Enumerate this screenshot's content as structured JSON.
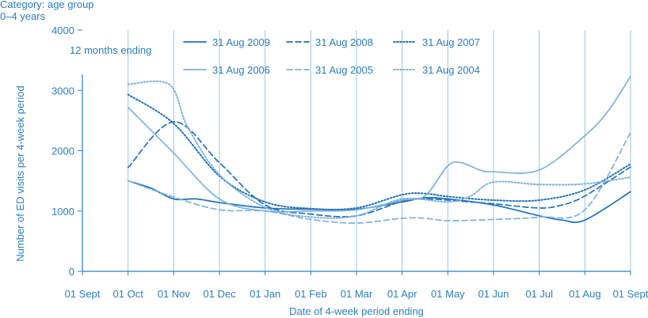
{
  "header": {
    "category_line": "Category: age group",
    "group_line": "0–4 years"
  },
  "chart_data": {
    "type": "line",
    "legend_title": "12 months ending",
    "xlabel": "Date of 4-week period ending",
    "ylabel": "Number of ED visits per 4-week period",
    "categories": [
      "01 Sept",
      "01 Oct",
      "01 Nov",
      "01 Dec",
      "01 Jan",
      "01 Feb",
      "01 Mar",
      "01 Apr",
      "01 May",
      "01 Jun",
      "01 Jul",
      "01 Aug",
      "01 Sept"
    ],
    "yticks": [
      0,
      1000,
      2000,
      3000,
      4000
    ],
    "ylim": [
      0,
      4000
    ],
    "grid": "vertical",
    "legend_position": "top-inside",
    "colors": {
      "dark": "#1f72b8",
      "light": "#7fb1da",
      "axis": "#2a7fc0"
    },
    "series": [
      {
        "name": "31 Aug 2009",
        "style": "solid",
        "color": "dark",
        "x": [
          1,
          1.5,
          2,
          2.5,
          3,
          4,
          5,
          6,
          7,
          7.5,
          8,
          9,
          10,
          10.5,
          11,
          12
        ],
        "y": [
          1500,
          1380,
          1200,
          1200,
          1140,
          1050,
          1030,
          1030,
          1150,
          1220,
          1200,
          1100,
          920,
          850,
          850,
          1320
        ]
      },
      {
        "name": "31 Aug 2008",
        "style": "dashed",
        "color": "dark",
        "x": [
          1,
          2,
          3,
          4,
          5,
          6,
          7,
          7.5,
          8,
          9,
          10,
          10.5,
          11,
          12
        ],
        "y": [
          1720,
          2480,
          1800,
          1100,
          950,
          920,
          1160,
          1200,
          1180,
          1120,
          1050,
          1100,
          1250,
          1730
        ]
      },
      {
        "name": "31 Aug 2007",
        "style": "dotted",
        "color": "dark",
        "x": [
          1,
          2,
          3,
          4,
          5,
          6,
          7,
          7.5,
          8,
          9,
          10,
          11,
          12
        ],
        "y": [
          2930,
          2450,
          1580,
          1150,
          1040,
          1050,
          1270,
          1290,
          1240,
          1180,
          1180,
          1350,
          1780
        ]
      },
      {
        "name": "31 Aug 2006",
        "style": "solid",
        "color": "light",
        "x": [
          1,
          2,
          3,
          4,
          5,
          6,
          7,
          7.5,
          8,
          8.3,
          8.7,
          9,
          10,
          11,
          11.5,
          12
        ],
        "y": [
          2720,
          1960,
          1200,
          1000,
          1000,
          1020,
          1180,
          1250,
          1750,
          1800,
          1680,
          1650,
          1680,
          2250,
          2650,
          3230
        ]
      },
      {
        "name": "31 Aug 2005",
        "style": "dashed",
        "color": "light",
        "x": [
          1,
          2,
          3,
          4,
          5,
          6,
          7,
          7.5,
          8,
          9,
          10,
          11,
          12
        ],
        "y": [
          1500,
          1230,
          1020,
          1000,
          860,
          800,
          880,
          880,
          840,
          860,
          900,
          1020,
          2300
        ]
      },
      {
        "name": "31 Aug 2004",
        "style": "dotted",
        "color": "light",
        "x": [
          1,
          1.9,
          2.3,
          3,
          4,
          5,
          6,
          7,
          8,
          8.5,
          9,
          10,
          11,
          12
        ],
        "y": [
          3100,
          3100,
          2400,
          1600,
          1060,
          900,
          920,
          1200,
          1150,
          1250,
          1480,
          1440,
          1450,
          1560
        ]
      }
    ]
  }
}
